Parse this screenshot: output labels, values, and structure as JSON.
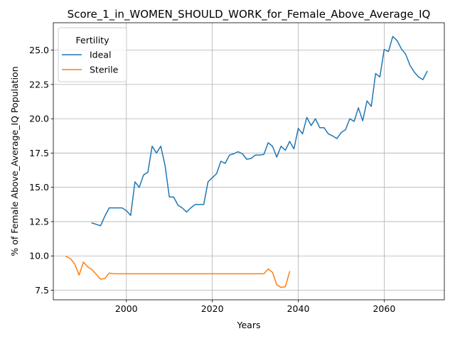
{
  "chart_data": {
    "type": "line",
    "title": "Score_1_in_WOMEN_SHOULD_WORK_for_Female_Above_Average_IQ",
    "xlabel": "Years",
    "ylabel": "% of Female Above_Average_IQ Population",
    "xlim": [
      1983,
      2074
    ],
    "ylim": [
      6.8,
      27.0
    ],
    "xticks": [
      2000,
      2020,
      2040,
      2060
    ],
    "yticks": [
      7.5,
      10.0,
      12.5,
      15.0,
      17.5,
      20.0,
      22.5,
      25.0
    ],
    "ytick_labels": [
      "7.5",
      "10.0",
      "12.5",
      "15.0",
      "17.5",
      "20.0",
      "22.5",
      "25.0"
    ],
    "grid": true,
    "legend": {
      "title": "Fertility",
      "position": "top-left"
    },
    "series": [
      {
        "name": "Ideal",
        "color": "#1f77b4",
        "x": [
          1992,
          1993,
          1994,
          1995,
          1996,
          1997,
          1998,
          1999,
          2000,
          2001,
          2002,
          2003,
          2004,
          2005,
          2006,
          2007,
          2008,
          2009,
          2010,
          2011,
          2012,
          2013,
          2014,
          2015,
          2016,
          2017,
          2018,
          2019,
          2020,
          2021,
          2022,
          2023,
          2024,
          2025,
          2026,
          2027,
          2028,
          2029,
          2030,
          2031,
          2032,
          2033,
          2034,
          2035,
          2036,
          2037,
          2038,
          2039,
          2040,
          2041,
          2042,
          2043,
          2044,
          2045,
          2046,
          2047,
          2048,
          2049,
          2050,
          2051,
          2052,
          2053,
          2054,
          2055,
          2056,
          2057,
          2058,
          2059,
          2060,
          2061,
          2062,
          2063,
          2064,
          2065,
          2066,
          2067,
          2068,
          2069,
          2070
        ],
        "values": [
          12.4,
          12.3,
          12.2,
          12.9,
          13.5,
          13.5,
          13.5,
          13.5,
          13.3,
          12.95,
          15.4,
          15.0,
          15.9,
          16.1,
          18.0,
          17.5,
          18.0,
          16.6,
          14.3,
          14.3,
          13.7,
          13.5,
          13.2,
          13.5,
          13.75,
          13.75,
          13.75,
          15.4,
          15.7,
          16.0,
          16.9,
          16.75,
          17.35,
          17.45,
          17.6,
          17.45,
          17.05,
          17.1,
          17.35,
          17.35,
          17.4,
          18.25,
          18.0,
          17.2,
          18.0,
          17.7,
          18.35,
          17.8,
          19.3,
          18.9,
          20.1,
          19.5,
          20.0,
          19.35,
          19.35,
          18.9,
          18.75,
          18.55,
          19.0,
          19.2,
          20.0,
          19.8,
          20.8,
          19.85,
          21.3,
          20.9,
          23.3,
          23.05,
          25.05,
          24.9,
          26.0,
          25.7,
          25.1,
          24.7,
          23.9,
          23.4,
          23.05,
          22.85,
          23.45
        ]
      },
      {
        "name": "Sterile",
        "color": "#ff7f0e",
        "x": [
          1986,
          1987,
          1988,
          1989,
          1990,
          1991,
          1992,
          1993,
          1994,
          1995,
          1996,
          1997,
          1998,
          1999,
          2000,
          2001,
          2002,
          2003,
          2004,
          2005,
          2006,
          2007,
          2008,
          2009,
          2010,
          2011,
          2012,
          2013,
          2014,
          2015,
          2016,
          2017,
          2018,
          2019,
          2020,
          2021,
          2022,
          2023,
          2024,
          2025,
          2026,
          2027,
          2028,
          2029,
          2030,
          2031,
          2032,
          2033,
          2034,
          2035,
          2036,
          2037,
          2038
        ],
        "values": [
          9.95,
          9.8,
          9.4,
          8.6,
          9.55,
          9.2,
          9.0,
          8.65,
          8.3,
          8.35,
          8.75,
          8.7,
          8.7,
          8.7,
          8.7,
          8.7,
          8.7,
          8.7,
          8.7,
          8.7,
          8.7,
          8.7,
          8.7,
          8.7,
          8.7,
          8.7,
          8.7,
          8.7,
          8.7,
          8.7,
          8.7,
          8.7,
          8.7,
          8.7,
          8.7,
          8.7,
          8.7,
          8.7,
          8.7,
          8.7,
          8.7,
          8.7,
          8.7,
          8.7,
          8.7,
          8.7,
          8.7,
          9.05,
          8.8,
          7.9,
          7.7,
          7.75,
          8.85
        ]
      }
    ]
  }
}
